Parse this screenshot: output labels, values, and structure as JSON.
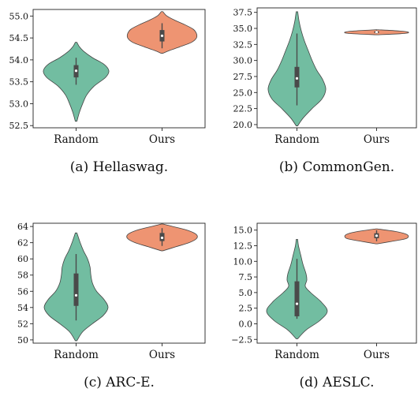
{
  "colors": {
    "random": "#72bda1",
    "ours": "#ee9472",
    "box": "#4a4a4a",
    "median": "#ffffff"
  },
  "chart_data": [
    {
      "type": "violin",
      "caption": "(a) Hellaswag.",
      "categories": [
        "Random",
        "Ours"
      ],
      "ylim": [
        52.45,
        55.15
      ],
      "yticks": [
        52.5,
        53.0,
        53.5,
        54.0,
        54.5,
        55.0
      ],
      "tick_decimals": 1,
      "grid": false,
      "series": [
        {
          "category": "Random",
          "min": 52.6,
          "max": 54.4,
          "q1": 53.6,
          "median": 53.75,
          "q3": 53.88,
          "density": [
            [
              52.6,
              0.01
            ],
            [
              52.8,
              0.04
            ],
            [
              53.0,
              0.08
            ],
            [
              53.2,
              0.13
            ],
            [
              53.4,
              0.22
            ],
            [
              53.6,
              0.36
            ],
            [
              53.75,
              0.4
            ],
            [
              53.9,
              0.34
            ],
            [
              54.05,
              0.2
            ],
            [
              54.2,
              0.09
            ],
            [
              54.3,
              0.04
            ],
            [
              54.4,
              0.01
            ]
          ]
        },
        {
          "category": "Ours",
          "min": 54.15,
          "max": 55.1,
          "q1": 54.42,
          "median": 54.55,
          "q3": 54.68,
          "density": [
            [
              54.15,
              0.01
            ],
            [
              54.22,
              0.1
            ],
            [
              54.3,
              0.22
            ],
            [
              54.4,
              0.36
            ],
            [
              54.5,
              0.42
            ],
            [
              54.6,
              0.42
            ],
            [
              54.7,
              0.38
            ],
            [
              54.8,
              0.28
            ],
            [
              54.9,
              0.16
            ],
            [
              55.0,
              0.06
            ],
            [
              55.1,
              0.01
            ]
          ]
        }
      ]
    },
    {
      "type": "violin",
      "caption": "(b) CommonGen.",
      "categories": [
        "Random",
        "Ours"
      ],
      "ylim": [
        19.5,
        38.2
      ],
      "yticks": [
        20.0,
        22.5,
        25.0,
        27.5,
        30.0,
        32.5,
        35.0,
        37.5
      ],
      "tick_decimals": 1,
      "grid": false,
      "series": [
        {
          "category": "Random",
          "min": 19.8,
          "max": 37.6,
          "q1": 25.8,
          "median": 27.2,
          "q3": 29.0,
          "whisker_low": 23.0,
          "whisker_high": 34.2,
          "density": [
            [
              19.8,
              0.01
            ],
            [
              21.0,
              0.08
            ],
            [
              22.5,
              0.2
            ],
            [
              24.0,
              0.33
            ],
            [
              25.5,
              0.38
            ],
            [
              27.0,
              0.34
            ],
            [
              28.5,
              0.26
            ],
            [
              30.0,
              0.2
            ],
            [
              31.5,
              0.15
            ],
            [
              33.0,
              0.1
            ],
            [
              34.5,
              0.06
            ],
            [
              36.0,
              0.03
            ],
            [
              37.6,
              0.01
            ]
          ]
        },
        {
          "category": "Ours",
          "min": 34.0,
          "max": 34.8,
          "q1": 34.3,
          "median": 34.42,
          "q3": 34.55,
          "density": [
            [
              34.0,
              0.0
            ],
            [
              34.2,
              0.35
            ],
            [
              34.4,
              0.42
            ],
            [
              34.6,
              0.3
            ],
            [
              34.8,
              0.0
            ]
          ]
        }
      ]
    },
    {
      "type": "violin",
      "caption": "(c) ARC-E.",
      "categories": [
        "Random",
        "Ours"
      ],
      "ylim": [
        49.6,
        64.4
      ],
      "yticks": [
        50,
        52,
        54,
        56,
        58,
        60,
        62,
        64
      ],
      "tick_decimals": 0,
      "grid": false,
      "series": [
        {
          "category": "Random",
          "min": 49.9,
          "max": 63.2,
          "q1": 54.2,
          "median": 55.5,
          "q3": 58.2,
          "whisker_low": 52.4,
          "whisker_high": 60.6,
          "density": [
            [
              49.9,
              0.01
            ],
            [
              51.0,
              0.08
            ],
            [
              52.0,
              0.2
            ],
            [
              53.0,
              0.33
            ],
            [
              54.0,
              0.39
            ],
            [
              55.0,
              0.34
            ],
            [
              56.0,
              0.25
            ],
            [
              57.0,
              0.2
            ],
            [
              58.0,
              0.18
            ],
            [
              59.0,
              0.17
            ],
            [
              60.0,
              0.14
            ],
            [
              61.0,
              0.09
            ],
            [
              62.0,
              0.05
            ],
            [
              63.2,
              0.01
            ]
          ]
        },
        {
          "category": "Ours",
          "min": 61.0,
          "max": 64.3,
          "q1": 62.2,
          "median": 62.6,
          "q3": 63.2,
          "density": [
            [
              61.0,
              0.01
            ],
            [
              61.5,
              0.17
            ],
            [
              62.0,
              0.33
            ],
            [
              62.5,
              0.42
            ],
            [
              63.0,
              0.42
            ],
            [
              63.5,
              0.32
            ],
            [
              64.0,
              0.13
            ],
            [
              64.3,
              0.01
            ]
          ]
        }
      ]
    },
    {
      "type": "violin",
      "caption": "(d) AESLC.",
      "categories": [
        "Random",
        "Ours"
      ],
      "ylim": [
        -3.1,
        16.1
      ],
      "yticks": [
        -2.5,
        0.0,
        2.5,
        5.0,
        7.5,
        10.0,
        12.5,
        15.0
      ],
      "tick_decimals": 1,
      "grid": false,
      "series": [
        {
          "category": "Random",
          "min": -2.4,
          "max": 13.5,
          "q1": 1.2,
          "median": 3.2,
          "q3": 6.8,
          "whisker_low": 0.8,
          "whisker_high": 10.4,
          "density": [
            [
              -2.4,
              0.01
            ],
            [
              -1.0,
              0.12
            ],
            [
              0.5,
              0.3
            ],
            [
              2.0,
              0.4
            ],
            [
              3.5,
              0.32
            ],
            [
              5.0,
              0.18
            ],
            [
              6.0,
              0.11
            ],
            [
              7.0,
              0.13
            ],
            [
              8.0,
              0.12
            ],
            [
              9.5,
              0.08
            ],
            [
              11.0,
              0.05
            ],
            [
              12.5,
              0.02
            ],
            [
              13.5,
              0.01
            ]
          ]
        },
        {
          "category": "Ours",
          "min": 12.8,
          "max": 15.2,
          "q1": 13.7,
          "median": 14.1,
          "q3": 14.5,
          "density": [
            [
              12.8,
              0.01
            ],
            [
              13.2,
              0.2
            ],
            [
              13.6,
              0.38
            ],
            [
              14.0,
              0.42
            ],
            [
              14.4,
              0.38
            ],
            [
              14.8,
              0.24
            ],
            [
              15.2,
              0.01
            ]
          ]
        }
      ]
    }
  ]
}
